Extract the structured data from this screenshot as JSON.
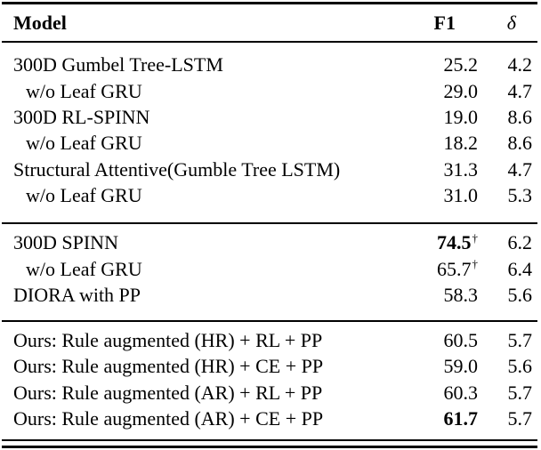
{
  "table": {
    "columns": [
      "Model",
      "F1",
      "δ"
    ],
    "footnote_marker": "†",
    "text_color": "#000000",
    "background_color": "#ffffff",
    "sections": [
      {
        "rows": [
          {
            "model": "300D Gumbel Tree-LSTM",
            "f1": "25.2",
            "delta": "4.2",
            "indent": false,
            "f1_bold": false
          },
          {
            "model": "w/o Leaf GRU",
            "f1": "29.0",
            "delta": "4.7",
            "indent": true,
            "f1_bold": false
          },
          {
            "model": "300D RL-SPINN",
            "f1": "19.0",
            "delta": "8.6",
            "indent": false,
            "f1_bold": false
          },
          {
            "model": "w/o Leaf GRU",
            "f1": "18.2",
            "delta": "8.6",
            "indent": true,
            "f1_bold": false
          },
          {
            "model": "Structural Attentive(Gumble Tree LSTM)",
            "f1": "31.3",
            "delta": "4.7",
            "indent": false,
            "f1_bold": false
          },
          {
            "model": "w/o Leaf GRU",
            "f1": "31.0",
            "delta": "5.3",
            "indent": true,
            "f1_bold": false
          }
        ]
      },
      {
        "rows": [
          {
            "model": "300D SPINN",
            "f1": "74.5",
            "f1_sup": "†",
            "delta": "6.2",
            "indent": false,
            "f1_bold": true
          },
          {
            "model": "w/o Leaf GRU",
            "f1": "65.7",
            "f1_sup": "†",
            "delta": "6.4",
            "indent": true,
            "f1_bold": false
          },
          {
            "model": "DIORA with PP",
            "f1": "58.3",
            "delta": "5.6",
            "indent": false,
            "f1_bold": false
          }
        ]
      },
      {
        "rows": [
          {
            "model": "Ours: Rule augmented (HR) + RL + PP",
            "f1": "60.5",
            "delta": "5.7",
            "indent": false,
            "f1_bold": false
          },
          {
            "model": "Ours: Rule augmented (HR) + CE + PP",
            "f1": "59.0",
            "delta": "5.6",
            "indent": false,
            "f1_bold": false
          },
          {
            "model": "Ours: Rule augmented (AR) + RL + PP",
            "f1": "60.3",
            "delta": "5.7",
            "indent": false,
            "f1_bold": false
          },
          {
            "model": "Ours: Rule augmented (AR) + CE + PP",
            "f1": "61.7",
            "delta": "5.7",
            "indent": false,
            "f1_bold": true
          }
        ]
      }
    ]
  }
}
